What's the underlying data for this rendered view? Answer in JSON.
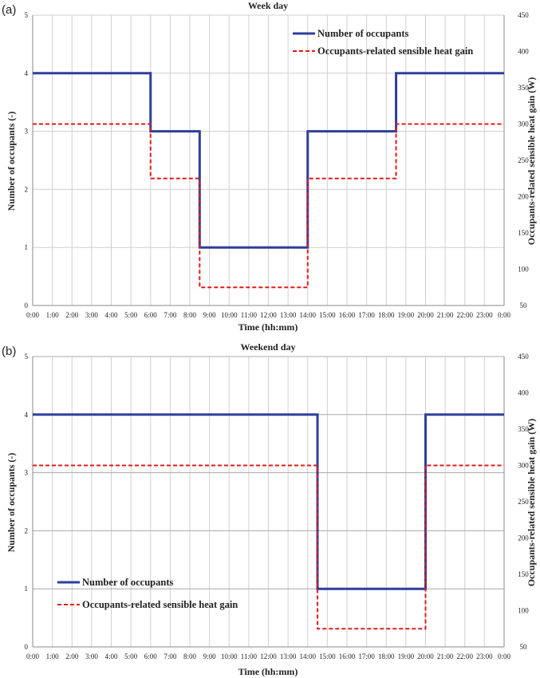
{
  "panels": [
    {
      "label": "(a)",
      "title": "Week day",
      "xlabel": "Time (hh:mm)",
      "ylabel_left": "Number of occupants (-)",
      "ylabel_right": "Occupants-related sensible heat gain (W)",
      "legend": [
        "Number of occupants",
        "Occupants-related sensible heat gain"
      ]
    },
    {
      "label": "(b)",
      "title": "Weekend day",
      "xlabel": "Time (hh:mm)",
      "ylabel_left": "Number of occupants (-)",
      "ylabel_right": "Occupants-related sensible heat gain (W)",
      "legend": [
        "Number of occupants",
        "Occupants-related sensible heat gain"
      ]
    }
  ],
  "colors": {
    "occupants": "#2e3f9c",
    "heat": "#e11b1b",
    "grid": "#d0d0d0",
    "grid_major": "#a8a8a8"
  },
  "chart_data": [
    {
      "type": "line",
      "title": "Week day",
      "xlabel": "Time (hh:mm)",
      "ylabel": "Number of occupants (-)",
      "y2label": "Occupants-related sensible heat gain (W)",
      "x_ticks": [
        "0:00",
        "1:00",
        "2:00",
        "3:00",
        "4:00",
        "5:00",
        "6:00",
        "7:00",
        "8:00",
        "9:00",
        "10:00",
        "11:00",
        "12:00",
        "13:00",
        "14:00",
        "15:00",
        "16:00",
        "17:00",
        "18:00",
        "19:00",
        "20:00",
        "21:00",
        "22:00",
        "23:00",
        "0:00"
      ],
      "xlim": [
        "0:00",
        "24:00"
      ],
      "ylim": [
        0,
        5
      ],
      "y2lim": [
        50,
        450
      ],
      "y_ticks": [
        0,
        1,
        2,
        3,
        4,
        5
      ],
      "y2_ticks": [
        50,
        100,
        150,
        200,
        250,
        300,
        350,
        400,
        450
      ],
      "legend_position": "top-right",
      "series": [
        {
          "name": "Number of occupants",
          "axis": "left",
          "style": "solid",
          "step": true,
          "points": [
            [
              "0:00",
              4
            ],
            [
              "6:00",
              4
            ],
            [
              "6:00",
              3
            ],
            [
              "8:30",
              3
            ],
            [
              "8:30",
              1
            ],
            [
              "14:00",
              1
            ],
            [
              "14:00",
              3
            ],
            [
              "18:30",
              3
            ],
            [
              "18:30",
              4
            ],
            [
              "24:00",
              4
            ]
          ]
        },
        {
          "name": "Occupants-related sensible heat gain",
          "axis": "right",
          "style": "dashed",
          "step": true,
          "points": [
            [
              "0:00",
              300
            ],
            [
              "6:00",
              300
            ],
            [
              "6:00",
              225
            ],
            [
              "8:30",
              225
            ],
            [
              "8:30",
              75
            ],
            [
              "14:00",
              75
            ],
            [
              "14:00",
              225
            ],
            [
              "18:30",
              225
            ],
            [
              "18:30",
              300
            ],
            [
              "24:00",
              300
            ]
          ]
        }
      ]
    },
    {
      "type": "line",
      "title": "Weekend day",
      "xlabel": "Time (hh:mm)",
      "ylabel": "Number of occupants (-)",
      "y2label": "Occupants-related sensible heat gain (W)",
      "x_ticks": [
        "0:00",
        "1:00",
        "2:00",
        "3:00",
        "4:00",
        "5:00",
        "6:00",
        "7:00",
        "8:00",
        "9:00",
        "10:00",
        "11:00",
        "12:00",
        "13:00",
        "14:00",
        "15:00",
        "16:00",
        "17:00",
        "18:00",
        "19:00",
        "20:00",
        "21:00",
        "22:00",
        "23:00",
        "0:00"
      ],
      "xlim": [
        "0:00",
        "24:00"
      ],
      "ylim": [
        0,
        5
      ],
      "y2lim": [
        50,
        450
      ],
      "y_ticks": [
        0,
        1,
        2,
        3,
        4,
        5
      ],
      "y2_ticks": [
        50,
        100,
        150,
        200,
        250,
        300,
        350,
        400,
        450
      ],
      "legend_position": "bottom-left",
      "series": [
        {
          "name": "Number of occupants",
          "axis": "left",
          "style": "solid",
          "step": true,
          "points": [
            [
              "0:00",
              4
            ],
            [
              "14:30",
              4
            ],
            [
              "14:30",
              1
            ],
            [
              "20:00",
              1
            ],
            [
              "20:00",
              4
            ],
            [
              "24:00",
              4
            ]
          ]
        },
        {
          "name": "Occupants-related sensible heat gain",
          "axis": "right",
          "style": "dashed",
          "step": true,
          "points": [
            [
              "0:00",
              300
            ],
            [
              "14:30",
              300
            ],
            [
              "14:30",
              75
            ],
            [
              "20:00",
              75
            ],
            [
              "20:00",
              300
            ],
            [
              "24:00",
              300
            ]
          ]
        }
      ]
    }
  ]
}
